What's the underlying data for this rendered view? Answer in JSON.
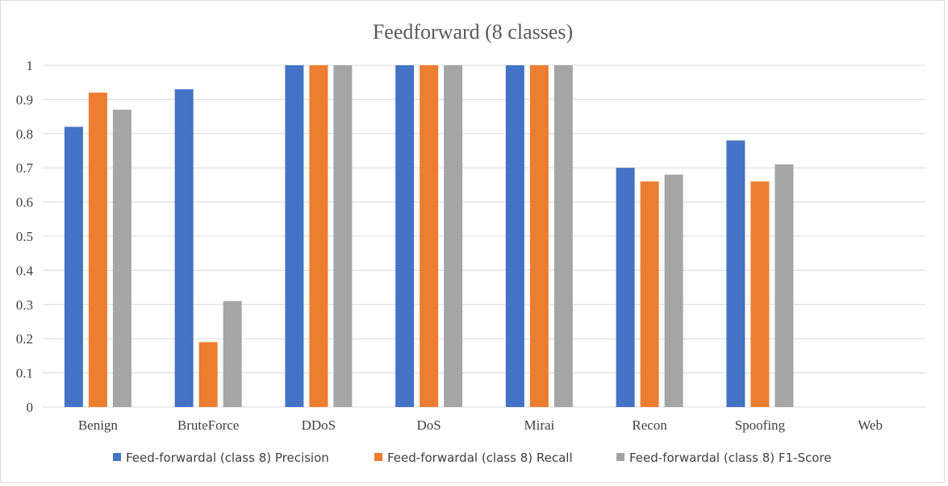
{
  "chart_data": {
    "type": "bar",
    "title": "Feedforward (8 classes)",
    "categories": [
      "Benign",
      "BruteForce",
      "DDoS",
      "DoS",
      "Mirai",
      "Recon",
      "Spoofing",
      "Web"
    ],
    "series": [
      {
        "name": "Feed-forwardal (class 8) Precision",
        "color": "#4472c4",
        "values": [
          0.82,
          0.93,
          1.0,
          1.0,
          1.0,
          0.7,
          0.78,
          0
        ]
      },
      {
        "name": "Feed-forwardal (class 8) Recall",
        "color": "#ed7d31",
        "values": [
          0.92,
          0.19,
          1.0,
          1.0,
          1.0,
          0.66,
          0.66,
          0
        ]
      },
      {
        "name": "Feed-forwardal (class 8) F1-Score",
        "color": "#a5a5a5",
        "values": [
          0.87,
          0.31,
          1.0,
          1.0,
          1.0,
          0.68,
          0.71,
          0
        ]
      }
    ],
    "ylim": [
      0,
      1
    ],
    "yticks": [
      "0",
      "0.1",
      "0.2",
      "0.3",
      "0.4",
      "0.5",
      "0.6",
      "0.7",
      "0.8",
      "0.9",
      "1"
    ],
    "grid": true,
    "legend": "bottom"
  }
}
